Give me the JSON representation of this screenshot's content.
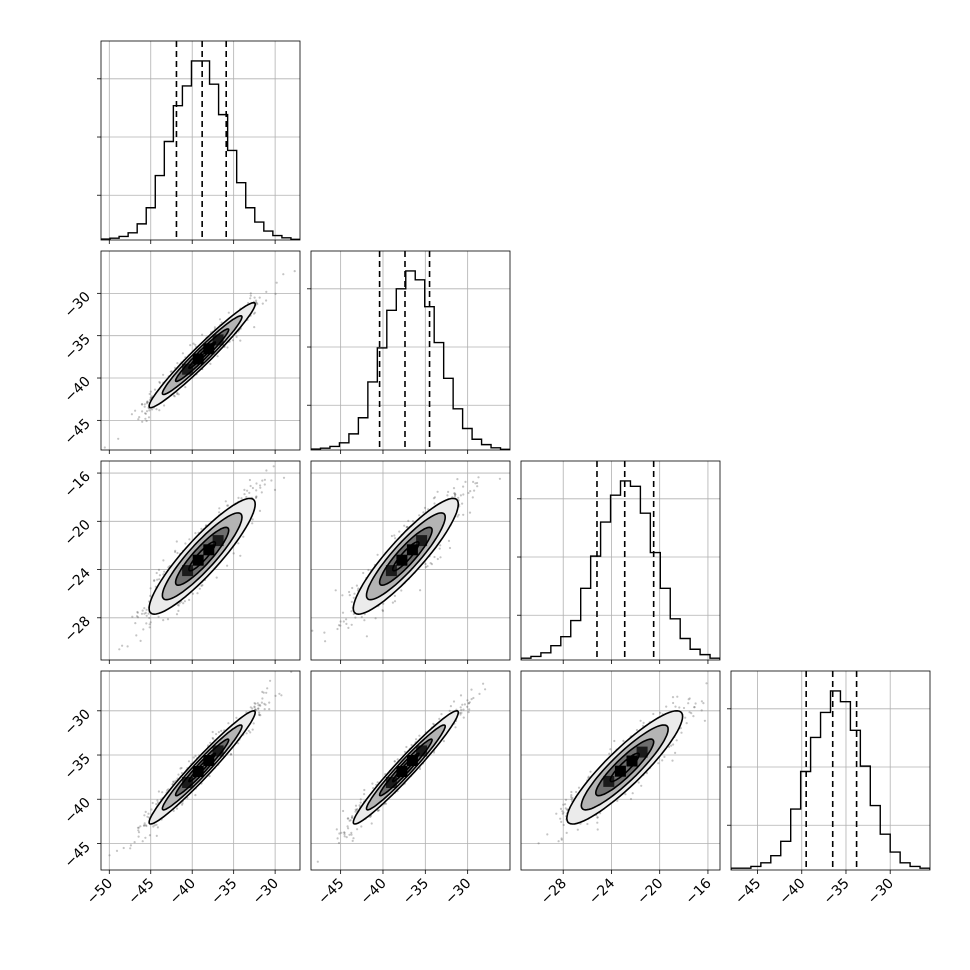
{
  "chart_data": {
    "type": "corner",
    "n_params": 4,
    "grid": true,
    "params": [
      {
        "mean": -38.8,
        "std": 3.2,
        "q16": -41.9,
        "q50": -38.8,
        "q84": -35.9,
        "ticks": [
          -50,
          -45,
          -40,
          -35,
          -30
        ],
        "range": [
          -51,
          -27
        ],
        "hist": [
          0.005,
          0.01,
          0.02,
          0.04,
          0.09,
          0.18,
          0.36,
          0.55,
          0.75,
          0.86,
          1.0,
          1.0,
          0.87,
          0.7,
          0.5,
          0.32,
          0.18,
          0.1,
          0.05,
          0.025,
          0.012,
          0.004
        ]
      },
      {
        "mean": -37.3,
        "std": 3.1,
        "q16": -40.4,
        "q50": -37.4,
        "q84": -34.5,
        "ticks": [
          -45,
          -40,
          -35,
          -30
        ],
        "range": [
          -48.5,
          -25
        ],
        "hist": [
          0.005,
          0.01,
          0.02,
          0.04,
          0.09,
          0.18,
          0.38,
          0.57,
          0.78,
          0.9,
          1.0,
          0.95,
          0.8,
          0.6,
          0.4,
          0.23,
          0.12,
          0.06,
          0.03,
          0.012,
          0.004
        ]
      },
      {
        "mean": -22.9,
        "std": 2.4,
        "q16": -25.2,
        "q50": -22.9,
        "q84": -20.5,
        "ticks": [
          -28,
          -24,
          -20,
          -16
        ],
        "range": [
          -31.5,
          -15
        ],
        "hist": [
          0.01,
          0.02,
          0.04,
          0.08,
          0.13,
          0.22,
          0.4,
          0.58,
          0.77,
          0.92,
          1.0,
          0.97,
          0.82,
          0.6,
          0.4,
          0.23,
          0.12,
          0.06,
          0.03,
          0.01
        ]
      },
      {
        "mean": -36.4,
        "std": 3.2,
        "q16": -39.5,
        "q50": -36.5,
        "q84": -33.8,
        "ticks": [
          -45,
          -40,
          -35,
          -30
        ],
        "range": [
          -48,
          -25.5
        ],
        "hist": [
          0.01,
          0.01,
          0.02,
          0.04,
          0.08,
          0.16,
          0.34,
          0.55,
          0.74,
          0.88,
          1.0,
          0.94,
          0.78,
          0.58,
          0.36,
          0.2,
          0.1,
          0.04,
          0.02,
          0.01
        ]
      }
    ],
    "correlations": [
      [
        1.0,
        0.97,
        0.9,
        0.97
      ],
      [
        0.97,
        1.0,
        0.9,
        0.97
      ],
      [
        0.9,
        0.9,
        1.0,
        0.9
      ],
      [
        0.97,
        0.97,
        0.9,
        1.0
      ]
    ],
    "contour_levels_sigma": [
      0.5,
      1.0,
      1.5,
      2.0
    ]
  }
}
